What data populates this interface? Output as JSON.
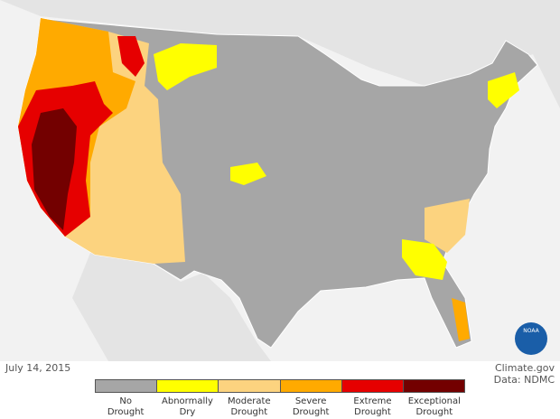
{
  "date": "July 14, 2015",
  "credit": "Climate.gov",
  "source": "Data: NDMC",
  "logo": "NOAA",
  "legend": [
    {
      "label": "No Drought",
      "color": "#a6a6a6"
    },
    {
      "label": "Abnormally Dry",
      "color": "#ffff00"
    },
    {
      "label": "Moderate Drought",
      "color": "#fcd37f"
    },
    {
      "label": "Severe Drought",
      "color": "#ffaa00"
    },
    {
      "label": "Extreme Drought",
      "color": "#e60000"
    },
    {
      "label": "Exceptional Drought",
      "color": "#730000"
    }
  ]
}
